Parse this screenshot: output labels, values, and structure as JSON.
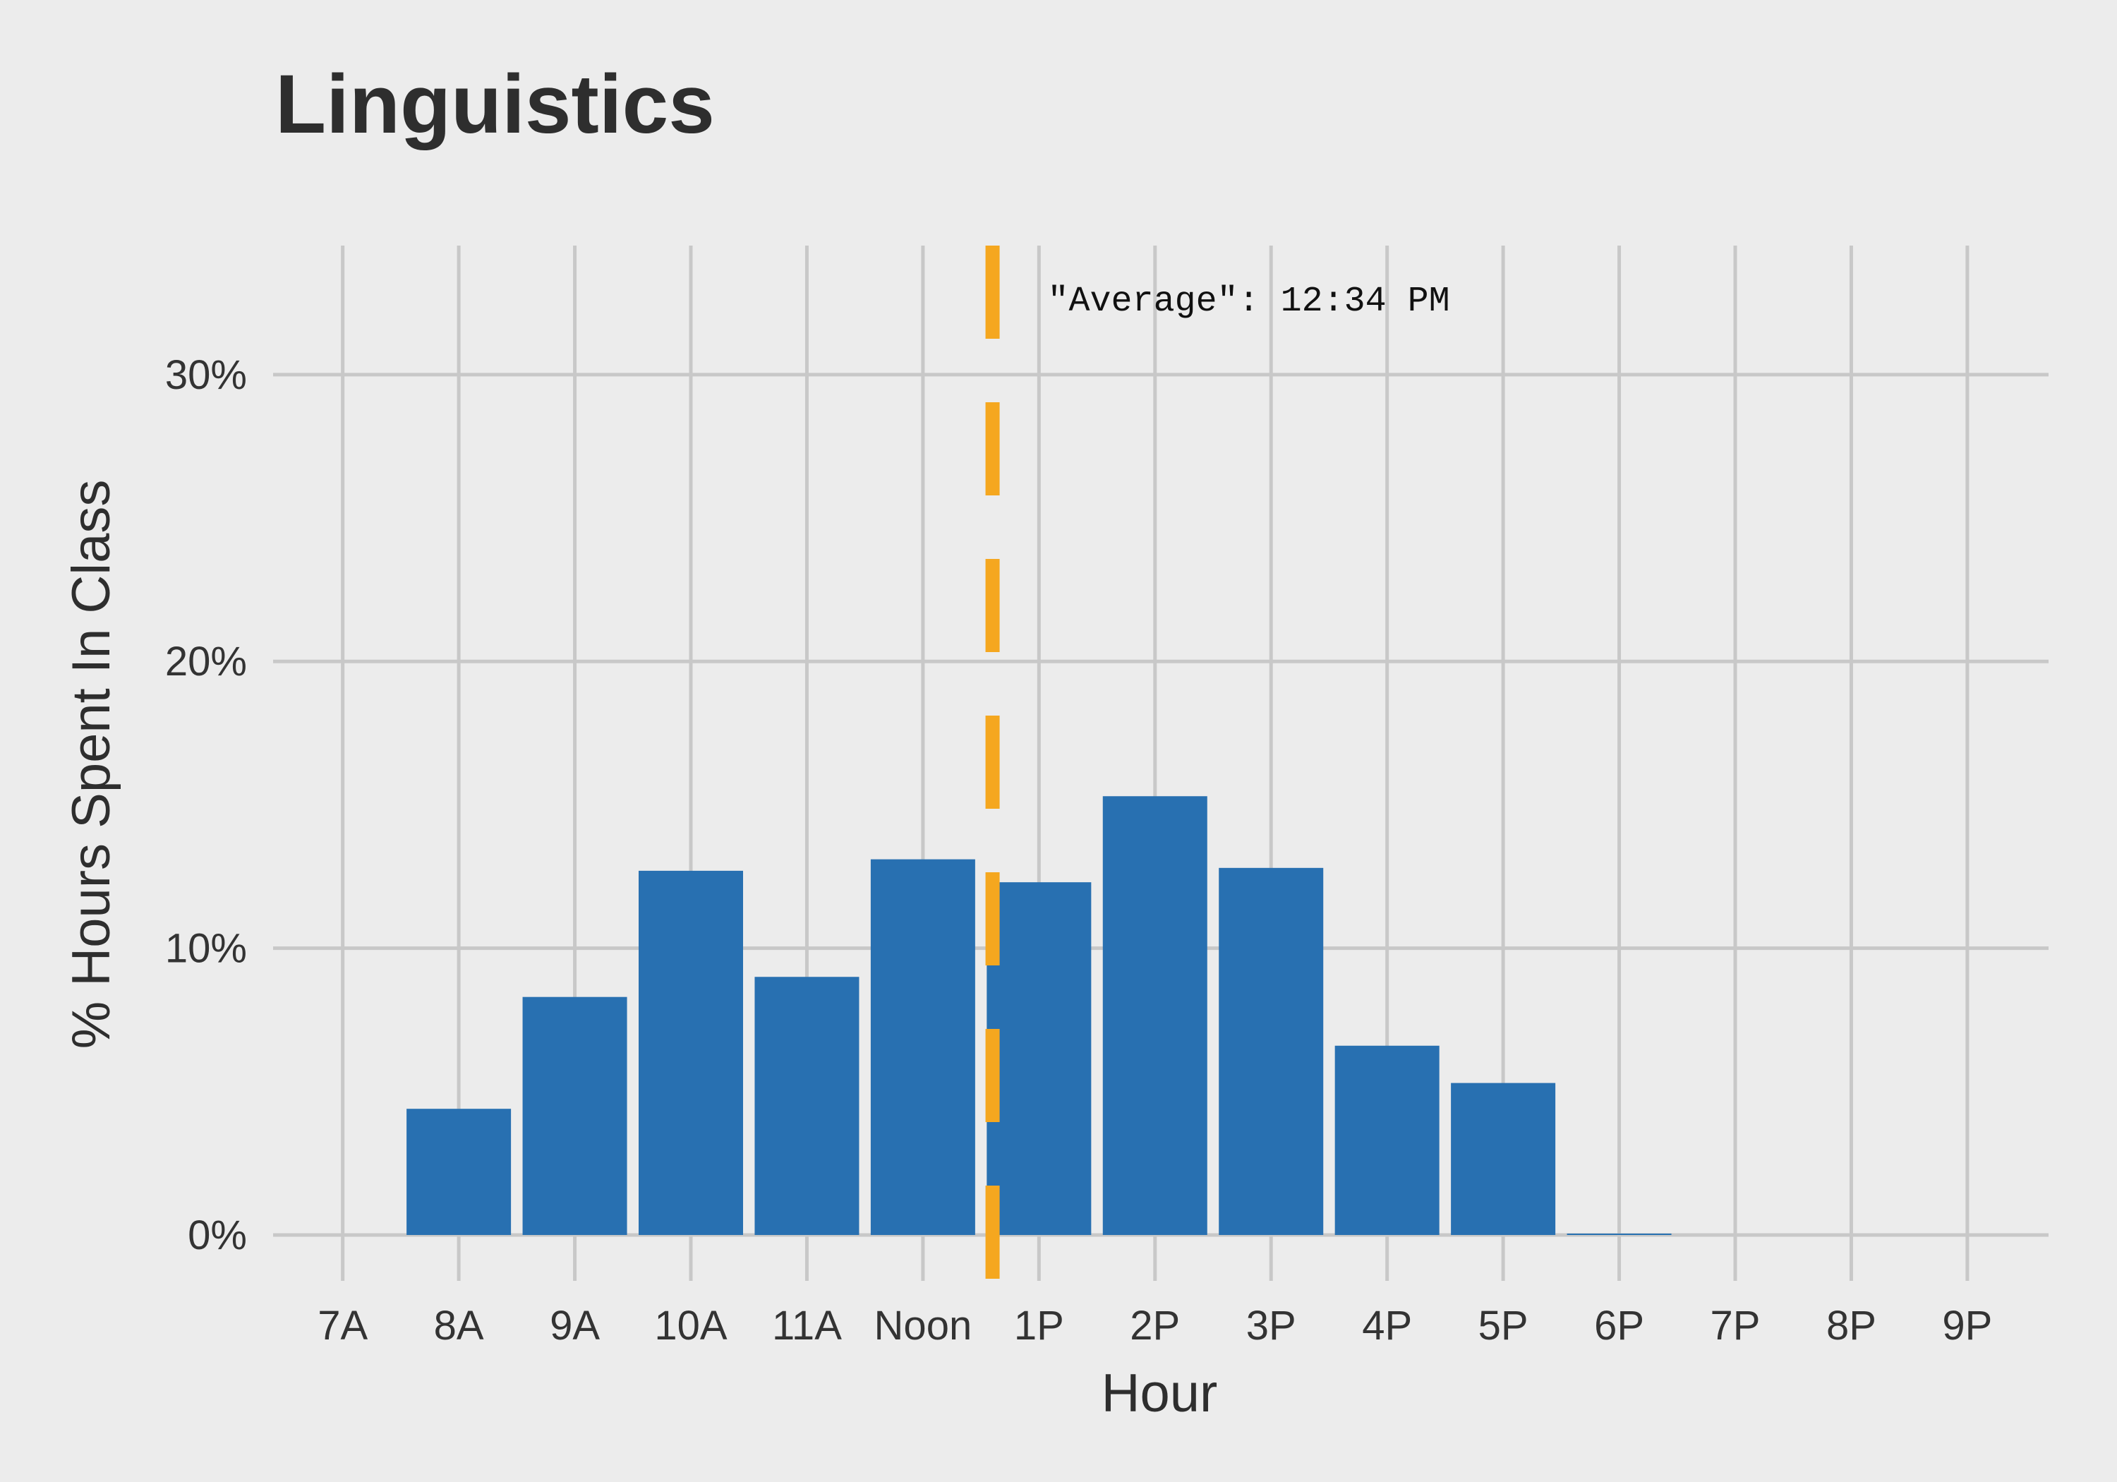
{
  "chart_data": {
    "type": "bar",
    "title": "Linguistics",
    "xlabel": "Hour",
    "ylabel": "% Hours Spent In Class",
    "categories": [
      "7A",
      "8A",
      "9A",
      "10A",
      "11A",
      "Noon",
      "1P",
      "2P",
      "3P",
      "4P",
      "5P",
      "6P",
      "7P",
      "8P",
      "9P"
    ],
    "values": [
      0,
      4.4,
      8.3,
      12.7,
      9.0,
      13.1,
      12.3,
      15.3,
      12.8,
      6.6,
      5.3,
      0.05,
      0,
      0,
      0
    ],
    "value_unit": "%",
    "ylim": [
      -1.6,
      34.5
    ],
    "yticks": [
      0,
      10,
      20,
      30
    ],
    "ytick_labels": [
      "0%",
      "10%",
      "20%",
      "30%"
    ],
    "xlim": [
      -0.6,
      14.7
    ],
    "grid": true,
    "average_line": {
      "x": 5.6,
      "label": "\"Average\": 12:34 PM",
      "style": "dashed"
    },
    "colors": {
      "background": "#ececec",
      "grid": "#c8c8c8",
      "bar": "#2870b1",
      "average_line": "#f5a71f"
    }
  }
}
